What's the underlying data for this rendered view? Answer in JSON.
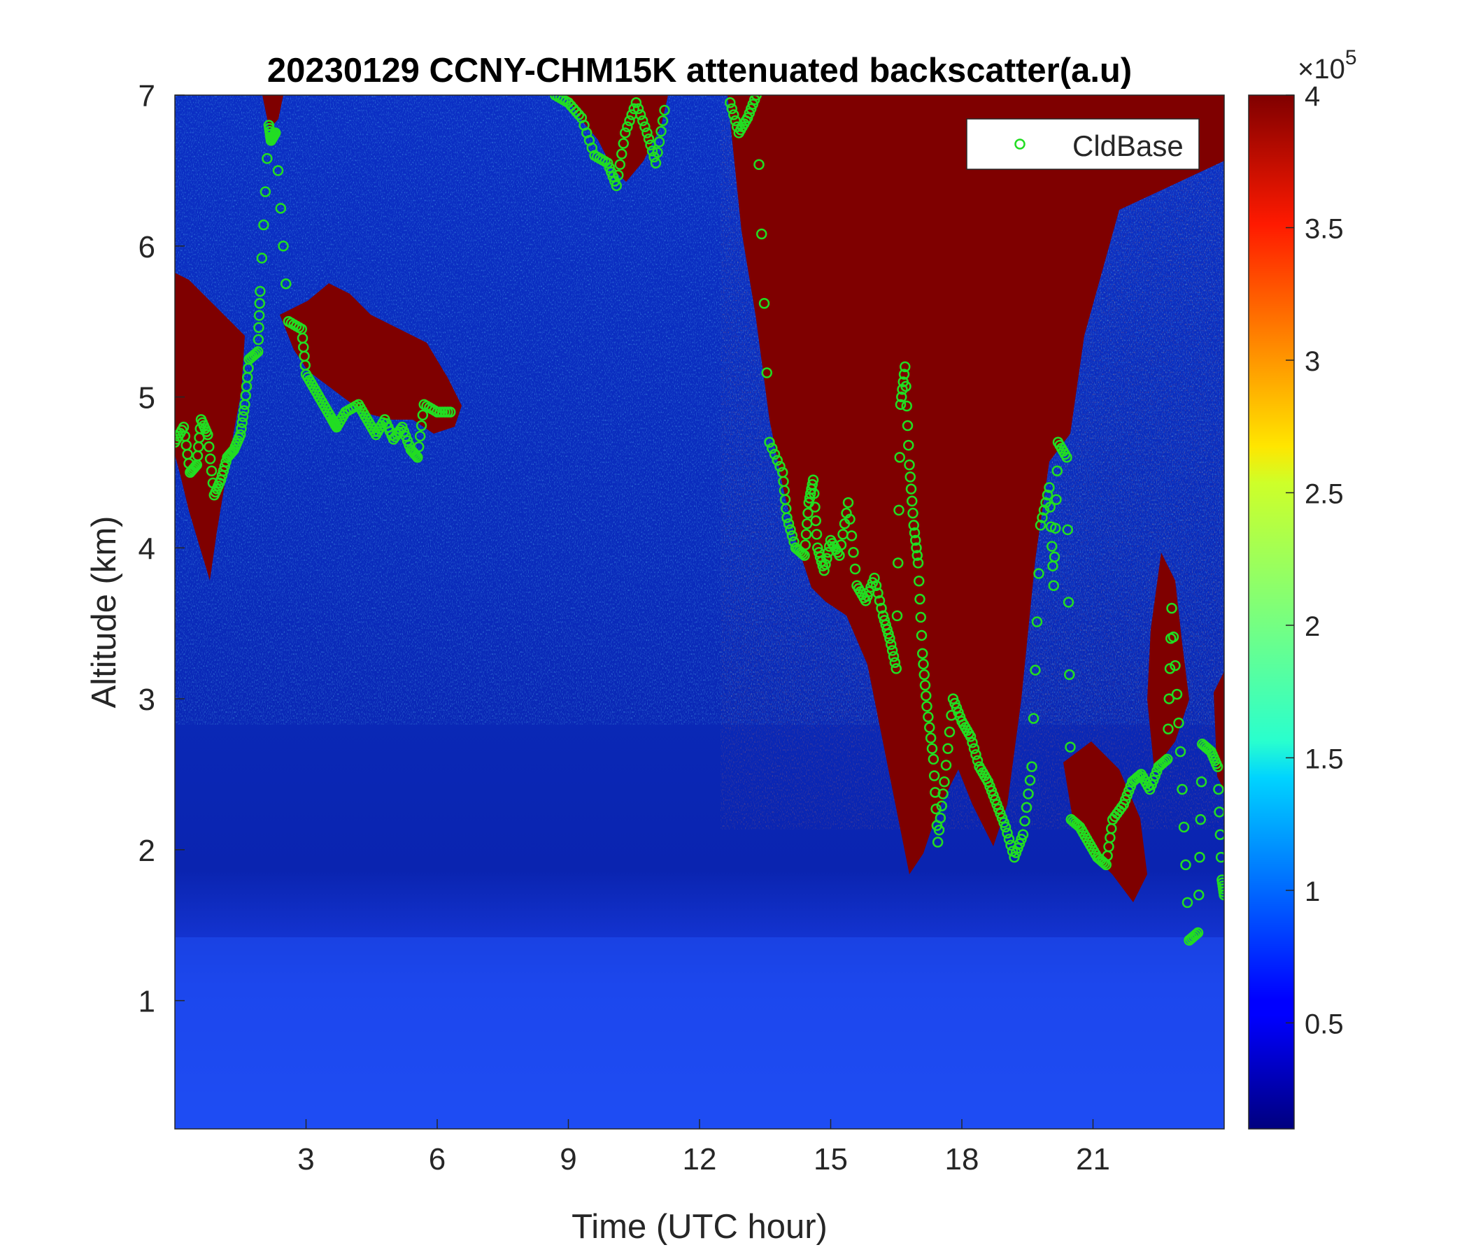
{
  "chart_data": {
    "type": "heatmap",
    "title": "20230129 CCNY-CHM15K attenuated backscatter(a.u)",
    "xlabel": "Time (UTC hour)",
    "ylabel": "Altitude (km)",
    "xlim": [
      0,
      24
    ],
    "ylim": [
      0.15,
      7
    ],
    "x_ticks": [
      "3",
      "6",
      "9",
      "12",
      "15",
      "18",
      "21"
    ],
    "y_ticks": [
      "1",
      "2",
      "3",
      "4",
      "5",
      "6",
      "7"
    ],
    "colorbar": {
      "colormap": "jet",
      "clim": [
        0.1,
        4
      ],
      "ticks": [
        "0.5",
        "1",
        "1.5",
        "2",
        "2.5",
        "3",
        "3.5",
        "4"
      ],
      "multiplier_base": "×10",
      "multiplier_exponent": "5"
    },
    "legend": {
      "position": "top-right",
      "entries": [
        "CldBase"
      ]
    },
    "series": [
      {
        "name": "CldBase",
        "marker": "open-circle",
        "color": "#22dd22",
        "points": [
          [
            0.0,
            4.7
          ],
          [
            0.2,
            4.8
          ],
          [
            0.35,
            4.5
          ],
          [
            0.5,
            4.55
          ],
          [
            0.6,
            4.85
          ],
          [
            0.75,
            4.75
          ],
          [
            0.9,
            4.35
          ],
          [
            1.05,
            4.45
          ],
          [
            1.2,
            4.6
          ],
          [
            1.35,
            4.65
          ],
          [
            1.5,
            4.75
          ],
          [
            1.6,
            4.95
          ],
          [
            1.7,
            5.25
          ],
          [
            1.9,
            5.3
          ],
          [
            1.95,
            5.7
          ],
          [
            2.15,
            6.8
          ],
          [
            2.2,
            6.7
          ],
          [
            2.3,
            6.75
          ],
          [
            2.6,
            5.5
          ],
          [
            2.9,
            5.45
          ],
          [
            3.0,
            5.15
          ],
          [
            3.2,
            5.05
          ],
          [
            3.4,
            4.95
          ],
          [
            3.6,
            4.85
          ],
          [
            3.7,
            4.8
          ],
          [
            3.9,
            4.9
          ],
          [
            4.2,
            4.95
          ],
          [
            4.4,
            4.85
          ],
          [
            4.6,
            4.75
          ],
          [
            4.8,
            4.85
          ],
          [
            5.0,
            4.72
          ],
          [
            5.2,
            4.8
          ],
          [
            5.4,
            4.65
          ],
          [
            5.55,
            4.6
          ],
          [
            5.7,
            4.95
          ],
          [
            6.0,
            4.9
          ],
          [
            6.3,
            4.9
          ],
          [
            8.7,
            7.0
          ],
          [
            9.0,
            6.95
          ],
          [
            9.3,
            6.85
          ],
          [
            9.6,
            6.6
          ],
          [
            9.9,
            6.55
          ],
          [
            10.1,
            6.4
          ],
          [
            10.3,
            6.75
          ],
          [
            10.55,
            6.95
          ],
          [
            10.8,
            6.75
          ],
          [
            11.0,
            6.55
          ],
          [
            11.2,
            6.9
          ],
          [
            12.7,
            6.95
          ],
          [
            12.9,
            6.75
          ],
          [
            13.1,
            6.85
          ],
          [
            13.3,
            7.0
          ],
          [
            13.6,
            4.7
          ],
          [
            13.9,
            4.5
          ],
          [
            14.0,
            4.2
          ],
          [
            14.2,
            4.0
          ],
          [
            14.4,
            3.95
          ],
          [
            14.5,
            4.3
          ],
          [
            14.6,
            4.45
          ],
          [
            14.7,
            4.0
          ],
          [
            14.85,
            3.85
          ],
          [
            15.0,
            4.05
          ],
          [
            15.2,
            3.95
          ],
          [
            15.4,
            4.3
          ],
          [
            15.6,
            3.75
          ],
          [
            15.8,
            3.65
          ],
          [
            16.0,
            3.8
          ],
          [
            16.2,
            3.55
          ],
          [
            16.35,
            3.4
          ],
          [
            16.5,
            3.2
          ],
          [
            16.6,
            4.95
          ],
          [
            16.7,
            5.2
          ],
          [
            16.8,
            4.55
          ],
          [
            16.9,
            4.15
          ],
          [
            17.0,
            3.9
          ],
          [
            17.1,
            3.3
          ],
          [
            17.2,
            2.95
          ],
          [
            17.35,
            2.6
          ],
          [
            17.45,
            2.05
          ],
          [
            17.6,
            2.45
          ],
          [
            17.8,
            3.0
          ],
          [
            18.0,
            2.85
          ],
          [
            18.2,
            2.75
          ],
          [
            18.4,
            2.55
          ],
          [
            18.6,
            2.45
          ],
          [
            18.8,
            2.3
          ],
          [
            19.0,
            2.15
          ],
          [
            19.2,
            1.95
          ],
          [
            19.4,
            2.1
          ],
          [
            19.6,
            2.55
          ],
          [
            19.8,
            4.15
          ],
          [
            20.0,
            4.4
          ],
          [
            20.1,
            3.75
          ],
          [
            20.2,
            4.7
          ],
          [
            20.4,
            4.6
          ],
          [
            20.5,
            2.2
          ],
          [
            20.7,
            2.15
          ],
          [
            20.9,
            2.05
          ],
          [
            21.1,
            1.95
          ],
          [
            21.3,
            1.9
          ],
          [
            21.45,
            2.2
          ],
          [
            21.7,
            2.3
          ],
          [
            21.9,
            2.45
          ],
          [
            22.1,
            2.5
          ],
          [
            22.3,
            2.4
          ],
          [
            22.5,
            2.55
          ],
          [
            22.7,
            2.6
          ],
          [
            22.8,
            3.6
          ],
          [
            23.0,
            2.65
          ],
          [
            23.2,
            1.4
          ],
          [
            23.4,
            1.45
          ],
          [
            23.5,
            2.7
          ],
          [
            23.7,
            2.65
          ],
          [
            23.85,
            2.55
          ],
          [
            23.95,
            1.8
          ],
          [
            24.0,
            1.7
          ]
        ]
      }
    ]
  }
}
